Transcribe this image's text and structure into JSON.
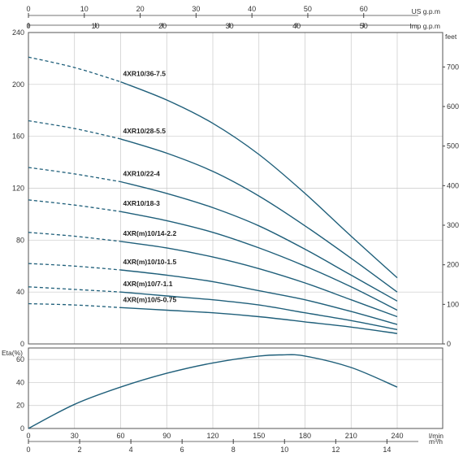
{
  "colors": {
    "curve": "#1f5f7a",
    "grid": "#c9c9c9",
    "axis": "#444444",
    "frame": "#555555"
  },
  "chart_data": {
    "type": "line",
    "axes": {
      "usgpm": {
        "label": "US g.p.m",
        "ticks": [
          "0",
          "10",
          "20",
          "30",
          "40",
          "50",
          "60"
        ],
        "range": [
          0,
          66
        ]
      },
      "impgpm": {
        "label": "Imp g.p.m",
        "ticks": [
          "0",
          "10",
          "20",
          "30",
          "40",
          "50"
        ],
        "range": [
          0,
          55
        ]
      },
      "head_m": {
        "ticks": [
          "0",
          "40",
          "80",
          "120",
          "160",
          "200",
          "240"
        ],
        "range": [
          0,
          240
        ]
      },
      "head_feet": {
        "label": "feet",
        "ticks": [
          "0",
          "100",
          "200",
          "300",
          "400",
          "500",
          "600",
          "700"
        ],
        "range": [
          0,
          787
        ]
      },
      "eta": {
        "label": "Eta(%)",
        "ticks": [
          "0",
          "20",
          "40",
          "60"
        ],
        "range": [
          0,
          70
        ]
      },
      "lmin": {
        "label": "l/min",
        "ticks": [
          "0",
          "30",
          "60",
          "90",
          "120",
          "150",
          "180",
          "210",
          "240"
        ],
        "range": [
          0,
          240
        ]
      },
      "m3h": {
        "label": "m³/h",
        "ticks": [
          "0",
          "2",
          "4",
          "6",
          "8",
          "10",
          "12",
          "14"
        ],
        "range": [
          0,
          14.4
        ]
      }
    },
    "dashed_until_lmin": 60,
    "series": [
      {
        "name": "4XR10/36-7.5",
        "x": [
          0,
          30,
          60,
          90,
          120,
          150,
          180,
          210,
          240
        ],
        "y": [
          221,
          213,
          202,
          188,
          170,
          146,
          116,
          83,
          51
        ]
      },
      {
        "name": "4XR10/28-5.5",
        "x": [
          0,
          30,
          60,
          90,
          120,
          150,
          180,
          210,
          240
        ],
        "y": [
          172,
          166,
          158,
          147,
          133,
          114,
          91,
          66,
          40
        ]
      },
      {
        "name": "4XR10/22-4",
        "x": [
          0,
          30,
          60,
          90,
          120,
          150,
          180,
          210,
          240
        ],
        "y": [
          136,
          131,
          125,
          116,
          105,
          91,
          73,
          53,
          33
        ]
      },
      {
        "name": "4XR10/18-3",
        "x": [
          0,
          30,
          60,
          90,
          120,
          150,
          180,
          210,
          240
        ],
        "y": [
          111,
          107,
          102,
          95,
          86,
          74,
          60,
          44,
          26
        ]
      },
      {
        "name": "4XR(m)10/14-2.2",
        "x": [
          0,
          30,
          60,
          90,
          120,
          150,
          180,
          210,
          240
        ],
        "y": [
          86,
          83,
          79,
          74,
          67,
          58,
          47,
          34,
          21
        ]
      },
      {
        "name": "4XR(m)10/10-1.5",
        "x": [
          0,
          30,
          60,
          90,
          120,
          150,
          180,
          210,
          240
        ],
        "y": [
          62,
          60,
          57,
          53,
          48,
          41,
          34,
          25,
          15
        ]
      },
      {
        "name": "4XR(m)10/7-1.1",
        "x": [
          0,
          30,
          60,
          90,
          120,
          150,
          180,
          210,
          240
        ],
        "y": [
          44,
          42,
          40,
          37,
          34,
          30,
          24,
          18,
          11
        ]
      },
      {
        "name": "4XR(m)10/5-0.75",
        "x": [
          0,
          30,
          60,
          90,
          120,
          150,
          180,
          210,
          240
        ],
        "y": [
          31,
          30,
          28,
          26,
          24,
          21,
          17,
          13,
          8
        ]
      }
    ],
    "efficiency": {
      "x": [
        0,
        30,
        60,
        90,
        120,
        150,
        165,
        180,
        210,
        240
      ],
      "y": [
        0,
        21,
        36,
        48,
        57,
        63,
        64,
        63,
        53,
        36
      ]
    }
  }
}
